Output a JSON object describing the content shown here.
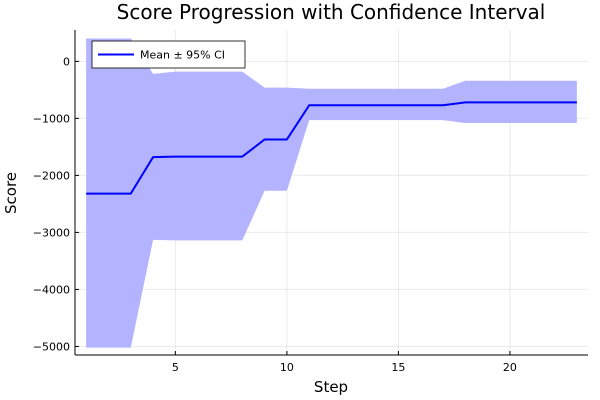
{
  "chart_data": {
    "type": "line",
    "title": "Score Progression with Confidence Interval",
    "xlabel": "Step",
    "ylabel": "Score",
    "xlim": [
      0.5,
      23.5
    ],
    "ylim": [
      -5150,
      550
    ],
    "x_ticks": [
      5,
      10,
      15,
      20
    ],
    "y_ticks": [
      0,
      -1000,
      -2000,
      -3000,
      -4000,
      -5000
    ],
    "grid": true,
    "legend_position": "top-left",
    "x": [
      1,
      2,
      3,
      4,
      5,
      6,
      7,
      8,
      9,
      10,
      11,
      12,
      13,
      14,
      15,
      16,
      17,
      18,
      19,
      20,
      21,
      22,
      23
    ],
    "series": [
      {
        "name": "Mean ± 95% CI",
        "color": "#0000ff",
        "band_color": "#b3b3ff",
        "mean": [
          -2320,
          -2320,
          -2320,
          -1680,
          -1670,
          -1670,
          -1670,
          -1670,
          -1370,
          -1370,
          -770,
          -770,
          -770,
          -770,
          -770,
          -770,
          -770,
          -720,
          -720,
          -720,
          -720,
          -720,
          -720
        ],
        "upper": [
          400,
          400,
          400,
          -220,
          -180,
          -180,
          -180,
          -180,
          -460,
          -460,
          -480,
          -480,
          -480,
          -480,
          -480,
          -480,
          -480,
          -340,
          -340,
          -340,
          -340,
          -340,
          -340
        ],
        "lower": [
          -5020,
          -5020,
          -5020,
          -3130,
          -3140,
          -3140,
          -3140,
          -3140,
          -2270,
          -2270,
          -1030,
          -1030,
          -1030,
          -1030,
          -1030,
          -1030,
          -1030,
          -1080,
          -1080,
          -1080,
          -1080,
          -1080,
          -1080
        ]
      }
    ]
  }
}
